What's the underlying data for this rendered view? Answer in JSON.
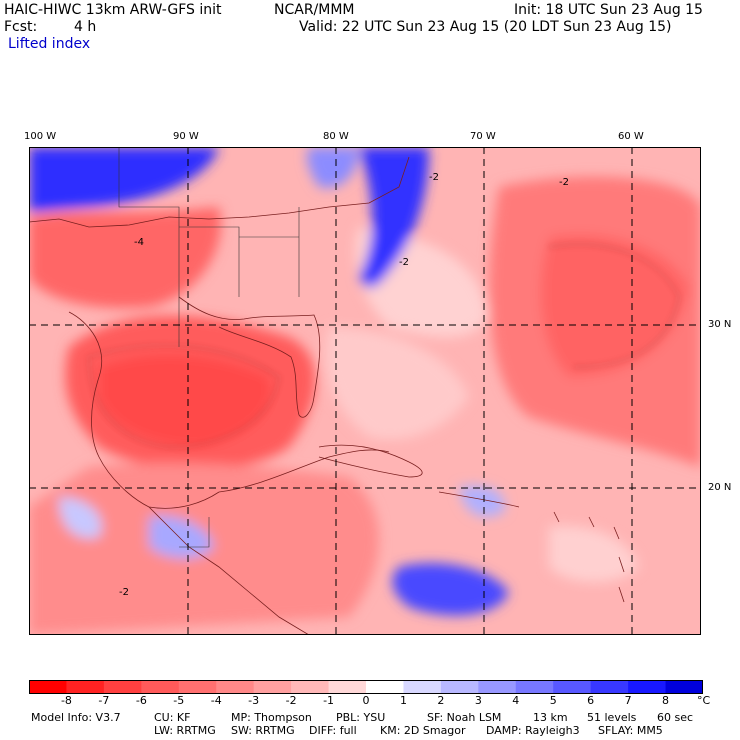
{
  "header": {
    "model_title": "HAIC-HIWC 13km ARW-GFS init",
    "org": "NCAR/MMM",
    "init": "Init: 18 UTC Sun 23 Aug 15",
    "fcst_label": "Fcst:",
    "fcst_value": "4 h",
    "valid": "Valid: 22 UTC Sun 23 Aug 15 (20 LDT Sun 23 Aug 15)",
    "field": "Lifted index"
  },
  "map": {
    "lon_labels": [
      "100 W",
      "90 W",
      "80 W",
      "70 W",
      "60 W"
    ],
    "lat_labels": [
      "30 N",
      "20 N"
    ],
    "contour_labels": [
      "-2",
      "-4",
      "-2",
      "-2",
      "-2"
    ]
  },
  "colorbar": {
    "unit": "°C",
    "tick_labels": [
      "-8",
      "-7",
      "-6",
      "-5",
      "-4",
      "-3",
      "-2",
      "-1",
      "0",
      "1",
      "2",
      "3",
      "4",
      "5",
      "6",
      "7",
      "8"
    ],
    "colors": [
      "#ff0000",
      "#ff2222",
      "#ff4040",
      "#ff5a5a",
      "#ff7070",
      "#ff8888",
      "#ffa0a0",
      "#ffb8b8",
      "#ffd8d8",
      "#ffffff",
      "#d8d8ff",
      "#b8b8ff",
      "#9898ff",
      "#7878ff",
      "#5858ff",
      "#3838ff",
      "#1818ff",
      "#0000dd"
    ]
  },
  "model_info": {
    "row1": [
      "Model Info: V3.7",
      "CU: KF",
      "MP: Thompson",
      "PBL: YSU",
      "SF: Noah LSM",
      "13 km",
      "51 levels",
      "60 sec"
    ],
    "row2": [
      "LW: RRTMG",
      "SW: RRTMG",
      "DIFF: full",
      "KM: 2D Smagor",
      "DAMP: Rayleigh3",
      "SFLAY: MM5"
    ]
  }
}
